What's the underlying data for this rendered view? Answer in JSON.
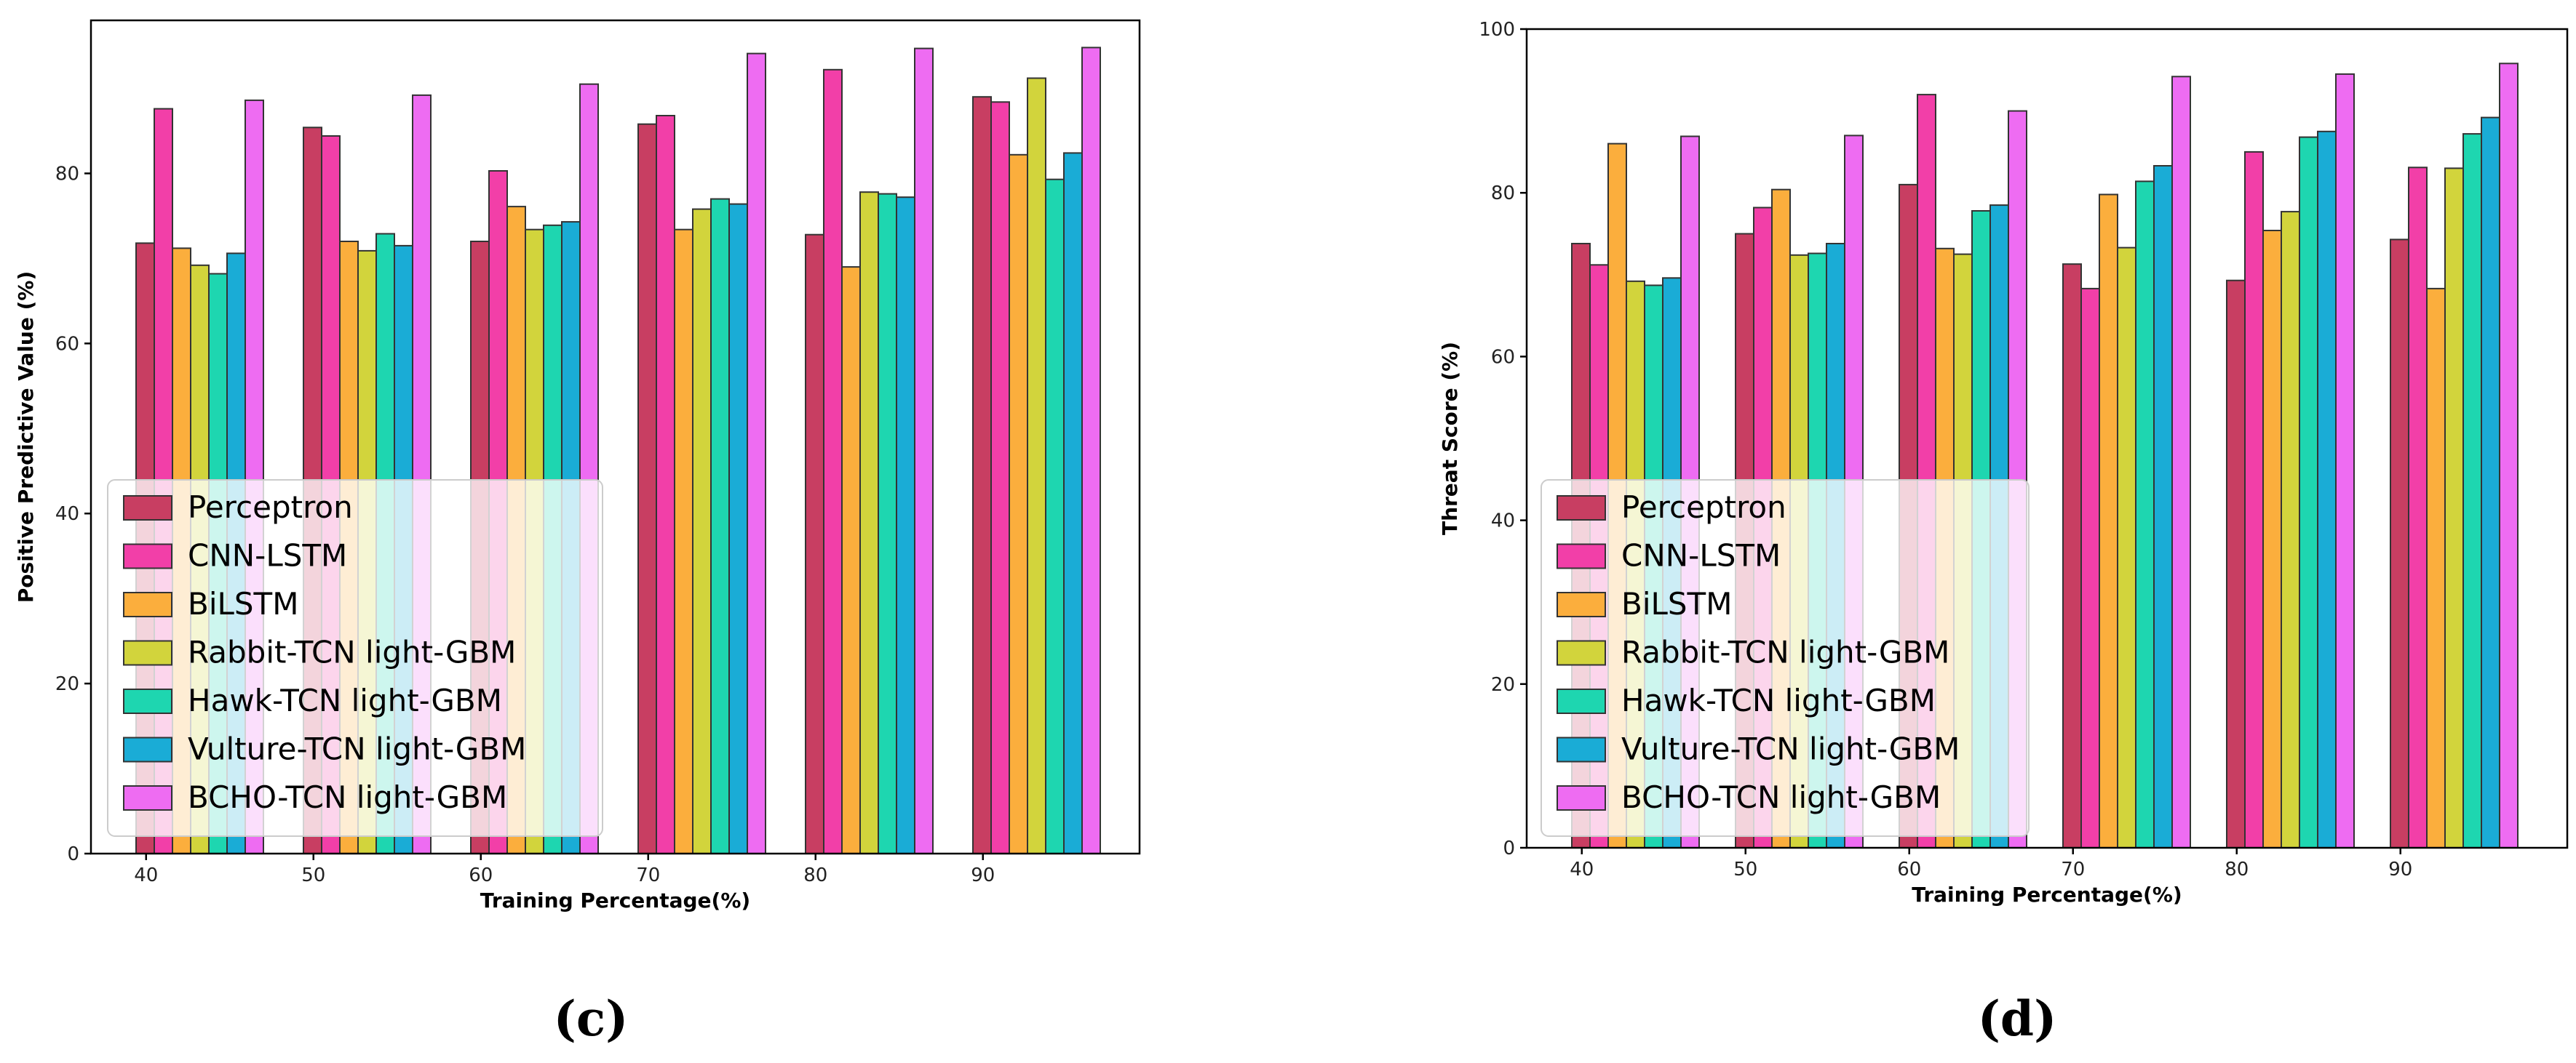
{
  "colors": {
    "series": [
      "#c83e62",
      "#f23fa8",
      "#fbae3d",
      "#d2d43c",
      "#1ed6b0",
      "#1aacd6",
      "#ee6cf2"
    ],
    "edge": "#333333"
  },
  "chart_data": [
    {
      "type": "bar",
      "panel_label": "(c)",
      "xlabel": "Training Percentage(%)",
      "ylabel": "Positive Predictive Value (%)",
      "categories": [
        "40",
        "50",
        "60",
        "70",
        "80",
        "90"
      ],
      "ylim": [
        0,
        98
      ],
      "yticks": [
        0,
        20,
        40,
        60,
        80
      ],
      "legend_position": "lower-left",
      "series": [
        {
          "name": "Perceptron",
          "values": [
            71.8,
            85.4,
            72.0,
            85.8,
            72.8,
            89.0
          ]
        },
        {
          "name": "CNN-LSTM",
          "values": [
            87.6,
            84.4,
            80.3,
            86.8,
            92.2,
            88.4
          ]
        },
        {
          "name": "BiLSTM",
          "values": [
            71.2,
            72.0,
            76.1,
            73.4,
            69.0,
            82.2
          ]
        },
        {
          "name": "Rabbit-TCN light-GBM",
          "values": [
            69.2,
            70.9,
            73.4,
            75.8,
            77.8,
            91.2
          ]
        },
        {
          "name": "Hawk-TCN light-GBM",
          "values": [
            68.2,
            72.9,
            73.9,
            77.0,
            77.6,
            79.3
          ]
        },
        {
          "name": "Vulture-TCN light-GBM",
          "values": [
            70.6,
            71.5,
            74.3,
            76.4,
            77.2,
            82.4
          ]
        },
        {
          "name": "BCHO-TCN light-GBM",
          "values": [
            88.6,
            89.2,
            90.5,
            94.1,
            94.7,
            94.8
          ]
        }
      ]
    },
    {
      "type": "bar",
      "panel_label": "(d)",
      "xlabel": "Training Percentage(%)",
      "ylabel": "Threat Score (%)",
      "categories": [
        "40",
        "50",
        "60",
        "70",
        "80",
        "90"
      ],
      "ylim": [
        0,
        100
      ],
      "yticks": [
        0,
        20,
        40,
        60,
        80,
        100
      ],
      "legend_position": "lower-left",
      "series": [
        {
          "name": "Perceptron",
          "values": [
            73.8,
            75.0,
            81.0,
            71.3,
            69.3,
            74.3
          ]
        },
        {
          "name": "CNN-LSTM",
          "values": [
            71.2,
            78.2,
            92.0,
            68.3,
            85.0,
            83.1
          ]
        },
        {
          "name": "BiLSTM",
          "values": [
            86.0,
            80.4,
            73.2,
            79.8,
            75.4,
            68.3
          ]
        },
        {
          "name": "Rabbit-TCN light-GBM",
          "values": [
            69.2,
            72.4,
            72.5,
            73.3,
            77.7,
            83.0
          ]
        },
        {
          "name": "Hawk-TCN light-GBM",
          "values": [
            68.7,
            72.6,
            77.8,
            81.4,
            86.8,
            87.2
          ]
        },
        {
          "name": "Vulture-TCN light-GBM",
          "values": [
            69.6,
            73.8,
            78.5,
            83.3,
            87.5,
            89.2
          ]
        },
        {
          "name": "BCHO-TCN light-GBM",
          "values": [
            86.9,
            87.0,
            90.0,
            94.2,
            94.5,
            95.8
          ]
        }
      ]
    }
  ]
}
